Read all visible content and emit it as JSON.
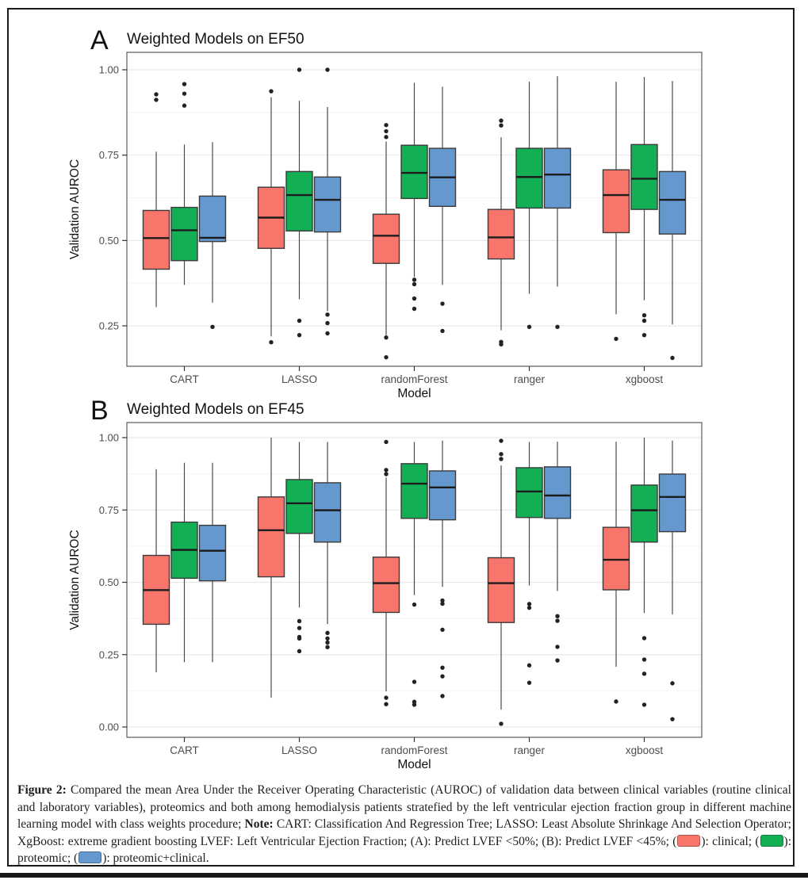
{
  "figure": {
    "caption_segments": [
      {
        "t": "text",
        "bold": true,
        "text": "Figure 2: "
      },
      {
        "t": "text",
        "bold": false,
        "text": "Compared the mean Area Under the Receiver Operating Characteristic (AUROC) of validation data between clinical variables (routine clinical and laboratory variables), proteomics and both among hemodialysis patients stratefied by the left ventricular ejection fraction group in different machine learning model with class weights procedure; "
      },
      {
        "t": "text",
        "bold": true,
        "text": "Note: "
      },
      {
        "t": "text",
        "bold": false,
        "text": "CART: Classification And Regression Tree; LASSO: Least Absolute Shrinkage And Selection Operator; XgBoost: extreme gradient boosting LVEF: Left Ventricular Ejection Fraction; (A): Predict LVEF <50%; (B): Predict LVEF <45%; ("
      },
      {
        "t": "swatch",
        "color": "#F8756B",
        "name": "clinical-swatch"
      },
      {
        "t": "text",
        "bold": false,
        "text": "): clinical; ("
      },
      {
        "t": "swatch",
        "color": "#12AF54",
        "name": "proteomic-swatch"
      },
      {
        "t": "text",
        "bold": false,
        "text": "): proteomic; ("
      },
      {
        "t": "swatch",
        "color": "#6598CE",
        "name": "proteomic-clinical-swatch"
      },
      {
        "t": "text",
        "bold": false,
        "text": "): proteomic+clinical."
      }
    ]
  },
  "palette": {
    "clinical": "#F8756B",
    "proteomic": "#12AF54",
    "proteomic+clinical": "#6598CE",
    "box_stroke": "#3b3b3b",
    "median": "#1c1c1c",
    "whisker": "#4a4a4a",
    "flier": "#222222",
    "grid_major": "#e8e8e8",
    "grid_minor": "#f4f4f4",
    "panel_border": "#5a5a5a",
    "tick_text": "#4d4d4d",
    "title_text": "#111111"
  },
  "chart_data": [
    {
      "type": "boxplot",
      "panel_label": "A",
      "title": "Weighted Models on EF50",
      "xlabel": "Model",
      "ylabel": "Validation AUROC",
      "categories": [
        "CART",
        "LASSO",
        "randomForest",
        "ranger",
        "xgboost"
      ],
      "yticks": [
        0.25,
        0.5,
        0.75,
        1.0
      ],
      "ylim": [
        0.13,
        1.05
      ],
      "grid": true,
      "series": [
        {
          "name": "clinical",
          "color_key": "clinical",
          "boxes": [
            {
              "lo": 0.305,
              "q1": 0.416,
              "med": 0.507,
              "q3": 0.588,
              "hi": 0.76,
              "out": [
                0.928,
                0.912
              ]
            },
            {
              "lo": 0.219,
              "q1": 0.477,
              "med": 0.567,
              "q3": 0.656,
              "hi": 0.92,
              "out": [
                0.937,
                0.202
              ]
            },
            {
              "lo": 0.223,
              "q1": 0.433,
              "med": 0.514,
              "q3": 0.577,
              "hi": 0.79,
              "out": [
                0.838,
                0.82,
                0.803,
                0.216,
                0.158
              ]
            },
            {
              "lo": 0.237,
              "q1": 0.446,
              "med": 0.509,
              "q3": 0.591,
              "hi": 0.802,
              "out": [
                0.851,
                0.837,
                0.203,
                0.196
              ]
            },
            {
              "lo": 0.284,
              "q1": 0.523,
              "med": 0.633,
              "q3": 0.707,
              "hi": 0.965,
              "out": [
                0.212
              ]
            }
          ]
        },
        {
          "name": "proteomic",
          "color_key": "proteomic",
          "boxes": [
            {
              "lo": 0.37,
              "q1": 0.441,
              "med": 0.53,
              "q3": 0.597,
              "hi": 0.781,
              "out": [
                0.958,
                0.93,
                0.895
              ]
            },
            {
              "lo": 0.328,
              "q1": 0.528,
              "med": 0.633,
              "q3": 0.702,
              "hi": 0.909,
              "out": [
                1.0,
                0.265,
                0.223
              ]
            },
            {
              "lo": 0.393,
              "q1": 0.623,
              "med": 0.698,
              "q3": 0.779,
              "hi": 0.962,
              "out": [
                0.385,
                0.372,
                0.33,
                0.3
              ]
            },
            {
              "lo": 0.344,
              "q1": 0.595,
              "med": 0.686,
              "q3": 0.77,
              "hi": 0.965,
              "out": [
                0.247
              ]
            },
            {
              "lo": 0.325,
              "q1": 0.591,
              "med": 0.681,
              "q3": 0.781,
              "hi": 0.979,
              "out": [
                0.281,
                0.265,
                0.223
              ]
            }
          ]
        },
        {
          "name": "proteomic+clinical",
          "color_key": "proteomic+clinical",
          "boxes": [
            {
              "lo": 0.318,
              "q1": 0.497,
              "med": 0.508,
              "q3": 0.63,
              "hi": 0.788,
              "out": [
                0.247
              ]
            },
            {
              "lo": 0.293,
              "q1": 0.525,
              "med": 0.619,
              "q3": 0.686,
              "hi": 0.891,
              "out": [
                1.0,
                0.283,
                0.258,
                0.228
              ]
            },
            {
              "lo": 0.37,
              "q1": 0.6,
              "med": 0.685,
              "q3": 0.77,
              "hi": 0.95,
              "out": [
                0.315,
                0.235
              ]
            },
            {
              "lo": 0.365,
              "q1": 0.595,
              "med": 0.693,
              "q3": 0.77,
              "hi": 0.981,
              "out": [
                0.247
              ]
            },
            {
              "lo": 0.254,
              "q1": 0.519,
              "med": 0.619,
              "q3": 0.702,
              "hi": 0.967,
              "out": [
                0.156
              ]
            }
          ]
        }
      ]
    },
    {
      "type": "boxplot",
      "panel_label": "B",
      "title": "Weighted Models on EF45",
      "xlabel": "Model",
      "ylabel": "Validation AUROC",
      "categories": [
        "CART",
        "LASSO",
        "randomForest",
        "ranger",
        "xgboost"
      ],
      "yticks": [
        0.0,
        0.25,
        0.5,
        0.75,
        1.0
      ],
      "ylim": [
        -0.04,
        1.05
      ],
      "grid": true,
      "series": [
        {
          "name": "clinical",
          "color_key": "clinical",
          "boxes": [
            {
              "lo": 0.189,
              "q1": 0.355,
              "med": 0.473,
              "q3": 0.593,
              "hi": 0.891,
              "out": []
            },
            {
              "lo": 0.101,
              "q1": 0.519,
              "med": 0.68,
              "q3": 0.795,
              "hi": 1.0,
              "out": []
            },
            {
              "lo": 0.123,
              "q1": 0.396,
              "med": 0.497,
              "q3": 0.587,
              "hi": 0.862,
              "out": [
                0.985,
                0.888,
                0.874,
                0.101,
                0.079
              ]
            },
            {
              "lo": 0.06,
              "q1": 0.361,
              "med": 0.497,
              "q3": 0.585,
              "hi": 0.904,
              "out": [
                0.989,
                0.943,
                0.926,
                0.011
              ]
            },
            {
              "lo": 0.208,
              "q1": 0.474,
              "med": 0.578,
              "q3": 0.69,
              "hi": 0.986,
              "out": [
                0.088
              ]
            }
          ]
        },
        {
          "name": "proteomic",
          "color_key": "proteomic",
          "boxes": [
            {
              "lo": 0.224,
              "q1": 0.514,
              "med": 0.612,
              "q3": 0.708,
              "hi": 0.913,
              "out": []
            },
            {
              "lo": 0.413,
              "q1": 0.669,
              "med": 0.773,
              "q3": 0.855,
              "hi": 0.985,
              "out": [
                0.366,
                0.342,
                0.311,
                0.306,
                0.262
              ]
            },
            {
              "lo": 0.456,
              "q1": 0.721,
              "med": 0.841,
              "q3": 0.91,
              "hi": 0.985,
              "out": [
                0.423,
                0.156,
                0.087,
                0.077
              ]
            },
            {
              "lo": 0.489,
              "q1": 0.724,
              "med": 0.814,
              "q3": 0.896,
              "hi": 0.985,
              "out": [
                0.425,
                0.412,
                0.213,
                0.153
              ]
            },
            {
              "lo": 0.394,
              "q1": 0.639,
              "med": 0.749,
              "q3": 0.836,
              "hi": 1.0,
              "out": [
                0.307,
                0.233,
                0.184,
                0.077
              ]
            }
          ]
        },
        {
          "name": "proteomic+clinical",
          "color_key": "proteomic+clinical",
          "boxes": [
            {
              "lo": 0.224,
              "q1": 0.505,
              "med": 0.609,
              "q3": 0.697,
              "hi": 0.913,
              "out": []
            },
            {
              "lo": 0.356,
              "q1": 0.639,
              "med": 0.749,
              "q3": 0.844,
              "hi": 0.985,
              "out": [
                0.325,
                0.306,
                0.292,
                0.276
              ]
            },
            {
              "lo": 0.484,
              "q1": 0.716,
              "med": 0.828,
              "q3": 0.885,
              "hi": 0.99,
              "out": [
                0.437,
                0.426,
                0.336,
                0.205,
                0.175,
                0.107
              ]
            },
            {
              "lo": 0.47,
              "q1": 0.721,
              "med": 0.8,
              "q3": 0.899,
              "hi": 0.986,
              "out": [
                0.383,
                0.367,
                0.277,
                0.23
              ]
            },
            {
              "lo": 0.389,
              "q1": 0.675,
              "med": 0.795,
              "q3": 0.874,
              "hi": 0.99,
              "out": [
                0.151,
                0.027
              ]
            }
          ]
        }
      ]
    }
  ]
}
